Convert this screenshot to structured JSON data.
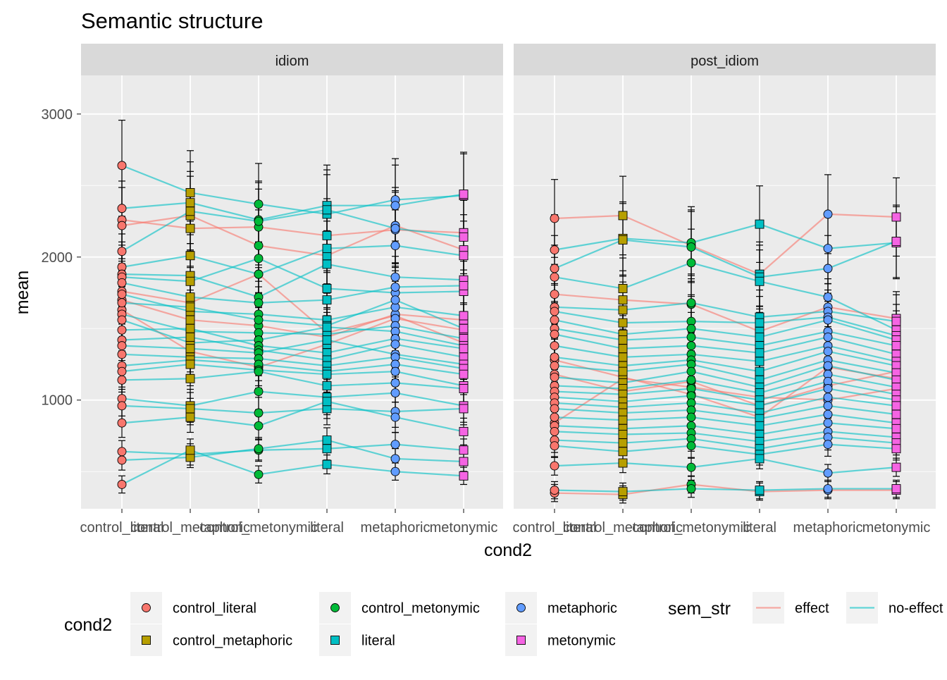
{
  "chart_data": {
    "type": "line",
    "title": "Semantic structure",
    "xlabel": "cond2",
    "ylabel": "mean",
    "ylim": [
      240,
      3270
    ],
    "yticks": [
      1000,
      2000,
      3000
    ],
    "grid": true,
    "legend_position": "bottom",
    "categories": [
      "control_literal",
      "control_metaphoric",
      "control_metonymic",
      "literal",
      "metaphoric",
      "metonymic"
    ],
    "facets": [
      "idiom",
      "post_idiom"
    ],
    "legends": {
      "cond2": {
        "title": "cond2",
        "items": [
          {
            "label": "control_literal",
            "color": "#F8766D",
            "shape": "circle"
          },
          {
            "label": "control_metaphoric",
            "color": "#B79F00",
            "shape": "square"
          },
          {
            "label": "control_metonymic",
            "color": "#00BA38",
            "shape": "circle"
          },
          {
            "label": "literal",
            "color": "#00BFC4",
            "shape": "square"
          },
          {
            "label": "metaphoric",
            "color": "#619CFF",
            "shape": "circle"
          },
          {
            "label": "metonymic",
            "color": "#F564E3",
            "shape": "square"
          }
        ]
      },
      "sem_str": {
        "title": "sem_str",
        "items": [
          {
            "label": "effect",
            "color": "#F8766D"
          },
          {
            "label": "no-effect",
            "color": "#00BFC4"
          }
        ]
      }
    },
    "panels": [
      {
        "facet": "idiom",
        "series": [
          {
            "sem_str": "effect",
            "values": [
              2260,
              2200,
              2210,
              2150,
              2190,
              2170
            ]
          },
          {
            "sem_str": "effect",
            "values": [
              2220,
              2290,
              2080,
              2010,
              2220,
              2050
            ]
          },
          {
            "sem_str": "effect",
            "values": [
              1760,
              1680,
              1880,
              1470,
              1590,
              1400
            ]
          },
          {
            "sem_str": "effect",
            "values": [
              1700,
              1560,
              1520,
              1440,
              1600,
              1560
            ]
          },
          {
            "sem_str": "effect",
            "values": [
              1630,
              1340,
              1230,
              1390,
              1570,
              1490
            ]
          },
          {
            "sem_str": "no-effect",
            "values": [
              2640,
              2450,
              2370,
              2300,
              2400,
              2430
            ]
          },
          {
            "sem_str": "no-effect",
            "values": [
              2340,
              2380,
              2260,
              2360,
              2360,
              2440
            ]
          },
          {
            "sem_str": "no-effect",
            "values": [
              2040,
              2320,
              2250,
              2330,
              2200,
              2140
            ]
          },
          {
            "sem_str": "no-effect",
            "values": [
              1930,
              2010,
              1880,
              2060,
              2080,
              2010
            ]
          },
          {
            "sem_str": "no-effect",
            "values": [
              1880,
              1870,
              1720,
              1950,
              1860,
              1840
            ]
          },
          {
            "sem_str": "no-effect",
            "values": [
              1860,
              1830,
              1990,
              1780,
              1750,
              1760
            ]
          },
          {
            "sem_str": "no-effect",
            "values": [
              1820,
              1720,
              1680,
              1700,
              1790,
              1800
            ]
          },
          {
            "sem_str": "no-effect",
            "values": [
              1740,
              1620,
              1600,
              1560,
              1650,
              1590
            ]
          },
          {
            "sem_str": "no-effect",
            "values": [
              1680,
              1650,
              1560,
              1520,
              1700,
              1500
            ]
          },
          {
            "sem_str": "no-effect",
            "values": [
              1600,
              1480,
              1470,
              1460,
              1520,
              1430
            ]
          },
          {
            "sem_str": "no-effect",
            "values": [
              1560,
              1400,
              1420,
              1510,
              1480,
              1380
            ]
          },
          {
            "sem_str": "no-effect",
            "values": [
              1490,
              1500,
              1380,
              1330,
              1430,
              1360
            ]
          },
          {
            "sem_str": "no-effect",
            "values": [
              1420,
              1440,
              1350,
              1280,
              1390,
              1300
            ]
          },
          {
            "sem_str": "no-effect",
            "values": [
              1380,
              1360,
              1330,
              1420,
              1320,
              1250
            ]
          },
          {
            "sem_str": "no-effect",
            "values": [
              1320,
              1300,
              1290,
              1240,
              1300,
              1220
            ]
          },
          {
            "sem_str": "no-effect",
            "values": [
              1240,
              1280,
              1250,
              1200,
              1250,
              1180
            ]
          },
          {
            "sem_str": "no-effect",
            "values": [
              1200,
              1250,
              1210,
              1180,
              1200,
              1100
            ]
          },
          {
            "sem_str": "no-effect",
            "values": [
              1140,
              1150,
              1200,
              1100,
              1120,
              1080
            ]
          },
          {
            "sem_str": "no-effect",
            "values": [
              1010,
              960,
              1060,
              1020,
              1050,
              960
            ]
          },
          {
            "sem_str": "no-effect",
            "values": [
              960,
              940,
              910,
              940,
              920,
              940
            ]
          },
          {
            "sem_str": "no-effect",
            "values": [
              840,
              880,
              820,
              990,
              880,
              780
            ]
          },
          {
            "sem_str": "no-effect",
            "values": [
              640,
              620,
              650,
              660,
              690,
              650
            ]
          },
          {
            "sem_str": "no-effect",
            "values": [
              580,
              600,
              660,
              720,
              590,
              570
            ]
          },
          {
            "sem_str": "no-effect",
            "values": [
              410,
              650,
              480,
              550,
              500,
              470
            ]
          }
        ]
      },
      {
        "facet": "post_idiom",
        "series": [
          {
            "sem_str": "effect",
            "values": [
              2270,
              2290,
              2080,
              1880,
              2300,
              2280
            ]
          },
          {
            "sem_str": "effect",
            "values": [
              1740,
              1700,
              1670,
              1480,
              1650,
              1570
            ]
          },
          {
            "sem_str": "effect",
            "values": [
              1280,
              1160,
              1040,
              880,
              1230,
              1150
            ]
          },
          {
            "sem_str": "effect",
            "values": [
              1180,
              1060,
              1130,
              960,
              1100,
              1200
            ]
          },
          {
            "sem_str": "effect",
            "values": [
              840,
              1150,
              1090,
              1020,
              1000,
              1080
            ]
          },
          {
            "sem_str": "effect",
            "values": [
              350,
              340,
              410,
              360,
              370,
              370
            ]
          },
          {
            "sem_str": "no-effect",
            "values": [
              2050,
              2130,
              2100,
              2230,
              2060,
              2100
            ]
          },
          {
            "sem_str": "no-effect",
            "values": [
              1920,
              2120,
              2070,
              1860,
              1920,
              2110
            ]
          },
          {
            "sem_str": "no-effect",
            "values": [
              1860,
              1780,
              1960,
              1830,
              1720,
              1490
            ]
          },
          {
            "sem_str": "no-effect",
            "values": [
              1650,
              1630,
              1680,
              1580,
              1620,
              1550
            ]
          },
          {
            "sem_str": "no-effect",
            "values": [
              1620,
              1540,
              1550,
              1540,
              1580,
              1450
            ]
          },
          {
            "sem_str": "no-effect",
            "values": [
              1560,
              1460,
              1500,
              1440,
              1560,
              1420
            ]
          },
          {
            "sem_str": "no-effect",
            "values": [
              1500,
              1420,
              1440,
              1380,
              1480,
              1380
            ]
          },
          {
            "sem_str": "no-effect",
            "values": [
              1460,
              1360,
              1380,
              1330,
              1440,
              1320
            ]
          },
          {
            "sem_str": "no-effect",
            "values": [
              1380,
              1300,
              1320,
              1270,
              1380,
              1270
            ]
          },
          {
            "sem_str": "no-effect",
            "values": [
              1300,
              1240,
              1280,
              1200,
              1340,
              1240
            ]
          },
          {
            "sem_str": "no-effect",
            "values": [
              1240,
              1200,
              1250,
              1140,
              1280,
              1190
            ]
          },
          {
            "sem_str": "no-effect",
            "values": [
              1160,
              1120,
              1200,
              1090,
              1240,
              1140
            ]
          },
          {
            "sem_str": "no-effect",
            "values": [
              1100,
              1080,
              1140,
              1050,
              1180,
              1090
            ]
          },
          {
            "sem_str": "no-effect",
            "values": [
              1060,
              1040,
              1080,
              1000,
              1130,
              1040
            ]
          },
          {
            "sem_str": "no-effect",
            "values": [
              1020,
              990,
              1030,
              960,
              1080,
              1000
            ]
          },
          {
            "sem_str": "no-effect",
            "values": [
              980,
              950,
              980,
              910,
              1020,
              960
            ]
          },
          {
            "sem_str": "no-effect",
            "values": [
              940,
              910,
              930,
              870,
              960,
              900
            ]
          },
          {
            "sem_str": "no-effect",
            "values": [
              880,
              860,
              880,
              820,
              900,
              840
            ]
          },
          {
            "sem_str": "no-effect",
            "values": [
              820,
              800,
              820,
              760,
              840,
              800
            ]
          },
          {
            "sem_str": "no-effect",
            "values": [
              780,
              760,
              770,
              710,
              780,
              740
            ]
          },
          {
            "sem_str": "no-effect",
            "values": [
              720,
              700,
              730,
              660,
              740,
              700
            ]
          },
          {
            "sem_str": "no-effect",
            "values": [
              680,
              640,
              680,
              620,
              690,
              660
            ]
          },
          {
            "sem_str": "no-effect",
            "values": [
              540,
              560,
              530,
              590,
              490,
              530
            ]
          },
          {
            "sem_str": "no-effect",
            "values": [
              370,
              360,
              380,
              370,
              380,
              380
            ]
          }
        ]
      }
    ]
  }
}
